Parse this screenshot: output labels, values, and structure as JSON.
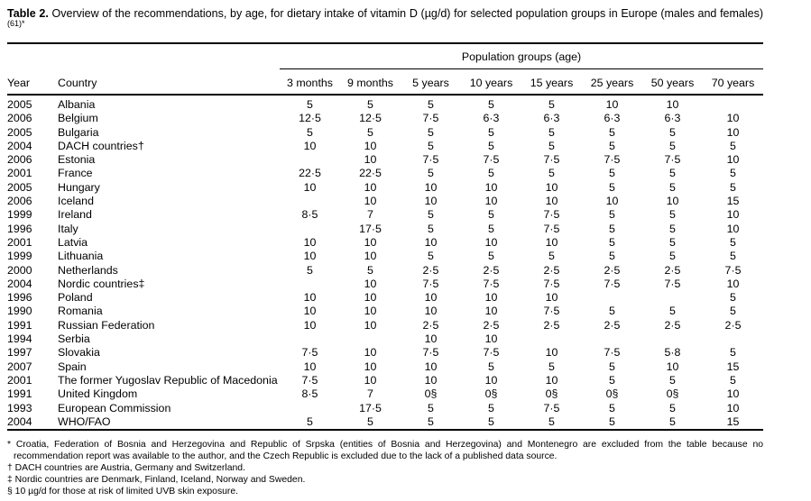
{
  "title": {
    "label": "Table 2.",
    "text": " Overview of the recommendations, by age, for dietary intake of vitamin D (µg/d) for selected population groups in Europe (males and females)",
    "sup": "(61)*"
  },
  "table": {
    "group_header": "Population groups (age)",
    "columns": [
      "Year",
      "Country",
      "3 months",
      "9 months",
      "5 years",
      "10 years",
      "15 years",
      "25 years",
      "50 years",
      "70 years"
    ],
    "rows": [
      {
        "year": "2005",
        "country": "Albania",
        "values": [
          "5",
          "5",
          "5",
          "5",
          "5",
          "10",
          "10",
          ""
        ]
      },
      {
        "year": "2006",
        "country": "Belgium",
        "values": [
          "12·5",
          "12·5",
          "7·5",
          "6·3",
          "6·3",
          "6·3",
          "6·3",
          "10"
        ]
      },
      {
        "year": "2005",
        "country": "Bulgaria",
        "values": [
          "5",
          "5",
          "5",
          "5",
          "5",
          "5",
          "5",
          "10"
        ]
      },
      {
        "year": "2004",
        "country": "DACH countries†",
        "values": [
          "10",
          "10",
          "5",
          "5",
          "5",
          "5",
          "5",
          "5"
        ]
      },
      {
        "year": "2006",
        "country": "Estonia",
        "values": [
          "",
          "10",
          "7·5",
          "7·5",
          "7·5",
          "7·5",
          "7·5",
          "10"
        ]
      },
      {
        "year": "2001",
        "country": "France",
        "values": [
          "22·5",
          "22·5",
          "5",
          "5",
          "5",
          "5",
          "5",
          "5"
        ]
      },
      {
        "year": "2005",
        "country": "Hungary",
        "values": [
          "10",
          "10",
          "10",
          "10",
          "10",
          "5",
          "5",
          "5"
        ]
      },
      {
        "year": "2006",
        "country": "Iceland",
        "values": [
          "",
          "10",
          "10",
          "10",
          "10",
          "10",
          "10",
          "15"
        ]
      },
      {
        "year": "1999",
        "country": "Ireland",
        "values": [
          "8·5",
          "7",
          "5",
          "5",
          "7·5",
          "5",
          "5",
          "10"
        ]
      },
      {
        "year": "1996",
        "country": "Italy",
        "values": [
          "",
          "17·5",
          "5",
          "5",
          "7·5",
          "5",
          "5",
          "10"
        ]
      },
      {
        "year": "2001",
        "country": "Latvia",
        "values": [
          "10",
          "10",
          "10",
          "10",
          "10",
          "5",
          "5",
          "5"
        ]
      },
      {
        "year": "1999",
        "country": "Lithuania",
        "values": [
          "10",
          "10",
          "5",
          "5",
          "5",
          "5",
          "5",
          "5"
        ]
      },
      {
        "year": "2000",
        "country": "Netherlands",
        "values": [
          "5",
          "5",
          "2·5",
          "2·5",
          "2·5",
          "2·5",
          "2·5",
          "7·5"
        ]
      },
      {
        "year": "2004",
        "country": "Nordic countries‡",
        "values": [
          "",
          "10",
          "7·5",
          "7·5",
          "7·5",
          "7·5",
          "7·5",
          "10"
        ]
      },
      {
        "year": "1996",
        "country": "Poland",
        "values": [
          "10",
          "10",
          "10",
          "10",
          "10",
          "",
          "",
          "5"
        ]
      },
      {
        "year": "1990",
        "country": "Romania",
        "values": [
          "10",
          "10",
          "10",
          "10",
          "7·5",
          "5",
          "5",
          "5"
        ]
      },
      {
        "year": "1991",
        "country": "Russian Federation",
        "values": [
          "10",
          "10",
          "2·5",
          "2·5",
          "2·5",
          "2·5",
          "2·5",
          "2·5"
        ]
      },
      {
        "year": "1994",
        "country": "Serbia",
        "values": [
          "",
          "",
          "10",
          "10",
          "",
          "",
          "",
          ""
        ]
      },
      {
        "year": "1997",
        "country": "Slovakia",
        "values": [
          "7·5",
          "10",
          "7·5",
          "7·5",
          "10",
          "7·5",
          "5·8",
          "5"
        ]
      },
      {
        "year": "2007",
        "country": "Spain",
        "values": [
          "10",
          "10",
          "10",
          "5",
          "5",
          "5",
          "10",
          "15"
        ]
      },
      {
        "year": "2001",
        "country": "The former Yugoslav Republic of Macedonia",
        "values": [
          "7·5",
          "10",
          "10",
          "10",
          "10",
          "5",
          "5",
          "5"
        ]
      },
      {
        "year": "1991",
        "country": "United Kingdom",
        "values": [
          "8·5",
          "7",
          "0§",
          "0§",
          "0§",
          "0§",
          "0§",
          "10"
        ]
      },
      {
        "year": "1993",
        "country": "European Commission",
        "values": [
          "",
          "17·5",
          "5",
          "5",
          "7·5",
          "5",
          "5",
          "10"
        ]
      },
      {
        "year": "2004",
        "country": "WHO/FAO",
        "values": [
          "5",
          "5",
          "5",
          "5",
          "5",
          "5",
          "5",
          "15"
        ]
      }
    ]
  },
  "footnotes": [
    "* Croatia, Federation of Bosnia and Herzegovina and Republic of Srpska (entities of Bosnia and Herzegovina) and Montenegro are excluded from the table because no recommendation report was available to the author, and the Czech Republic is excluded due to the lack of a published data source.",
    "† DACH countries are Austria, Germany and Switzerland.",
    "‡ Nordic countries are Denmark, Finland, Iceland, Norway and Sweden.",
    "§ 10 µg/d for those at risk of limited UVB skin exposure."
  ]
}
